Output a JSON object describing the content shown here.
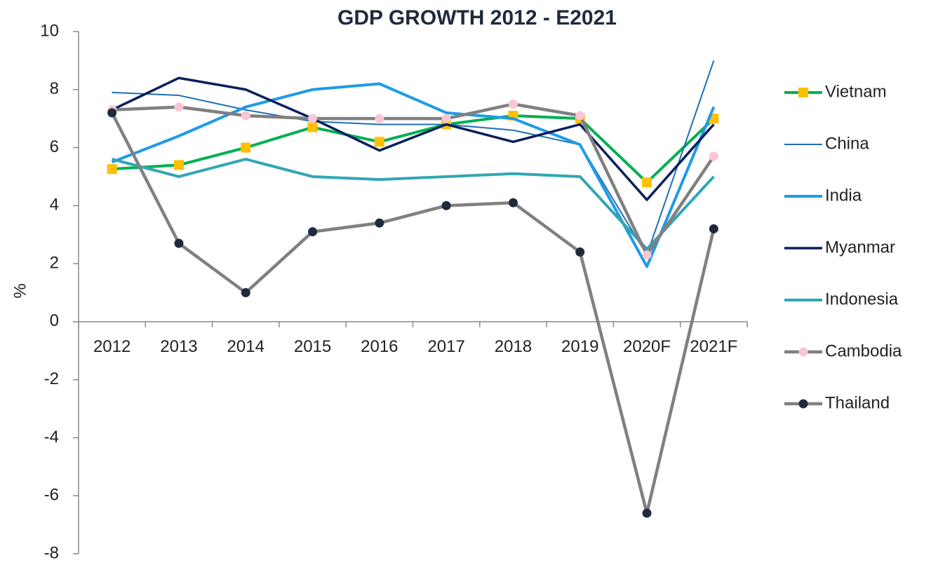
{
  "chart_data": {
    "type": "line",
    "title": "GDP GROWTH 2012 - E2021",
    "y_label": "%",
    "categories": [
      "2012",
      "2013",
      "2014",
      "2015",
      "2016",
      "2017",
      "2018",
      "2019",
      "2020F",
      "2021F"
    ],
    "series": [
      {
        "name": "Vietnam",
        "color": "#00b050",
        "marker": "square",
        "marker_color": "#ffc000",
        "values": [
          5.26,
          5.4,
          6.0,
          6.7,
          6.2,
          6.8,
          7.1,
          7.0,
          4.8,
          7.0
        ]
      },
      {
        "name": "China",
        "color": "#1f6fb5",
        "values": [
          7.9,
          7.8,
          7.3,
          6.9,
          6.8,
          6.8,
          6.6,
          6.1,
          2.3,
          9.0
        ]
      },
      {
        "name": "India",
        "color": "#1e9be8",
        "values": [
          5.5,
          6.4,
          7.4,
          8.0,
          8.2,
          7.2,
          7.0,
          6.1,
          1.9,
          7.4
        ]
      },
      {
        "name": "Myanmar",
        "color": "#0b1f5c",
        "values": [
          7.3,
          8.4,
          8.0,
          7.0,
          5.9,
          6.8,
          6.2,
          6.8,
          4.2,
          6.8
        ]
      },
      {
        "name": "Indonesia",
        "color": "#31a6b5",
        "values": [
          5.6,
          5.0,
          5.6,
          5.0,
          4.9,
          5.0,
          5.1,
          5.0,
          2.5,
          5.0
        ]
      },
      {
        "name": "Cambodia",
        "color": "#808080",
        "marker": "circle",
        "marker_color": "#f9c6d6",
        "values": [
          7.3,
          7.4,
          7.1,
          7.0,
          7.0,
          7.0,
          7.5,
          7.1,
          2.3,
          5.7
        ]
      },
      {
        "name": "Thailand",
        "color": "#808080",
        "marker": "circle",
        "marker_color": "#1f2a3c",
        "values": [
          7.2,
          2.7,
          1.0,
          3.1,
          3.4,
          4.0,
          4.1,
          2.4,
          -6.6,
          3.2
        ]
      }
    ],
    "ylim": [
      -8,
      10
    ],
    "yticks": [
      -8,
      -6,
      -4,
      -2,
      0,
      2,
      4,
      6,
      8,
      10
    ],
    "legend": "right",
    "grid": false
  }
}
